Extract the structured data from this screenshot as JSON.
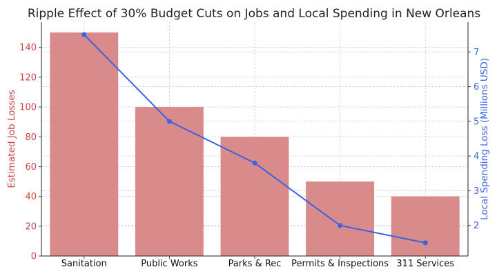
{
  "chart_data": {
    "type": "bar",
    "title": "Ripple Effect of 30% Budget Cuts on Jobs and Local Spending in New Orleans",
    "categories": [
      "Sanitation",
      "Public Works",
      "Parks & Rec",
      "Permits & Inspections",
      "311 Services"
    ],
    "series": [
      {
        "name": "Estimated Job Losses",
        "type": "bar",
        "axis": "left",
        "values": [
          150,
          100,
          80,
          50,
          40
        ]
      },
      {
        "name": "Local Spending Loss (Millions USD)",
        "type": "line",
        "axis": "right",
        "values": [
          7.5,
          5.0,
          3.8,
          2.0,
          1.5
        ]
      }
    ],
    "ylabel": "Estimated Job Losses",
    "y2label": "Local Spending Loss (Millions USD)",
    "ylim": [
      0,
      157
    ],
    "yticks": [
      0,
      20,
      40,
      60,
      80,
      100,
      120,
      140
    ],
    "y2lim": [
      1.12,
      7.86
    ],
    "y2ticks": [
      2,
      3,
      4,
      5,
      6,
      7
    ],
    "grid": true,
    "colors": {
      "bar": "#d98a8a",
      "line": "#3a63e0",
      "left_axis_text": "#cc4444",
      "right_axis_text": "#3a63e0"
    }
  }
}
